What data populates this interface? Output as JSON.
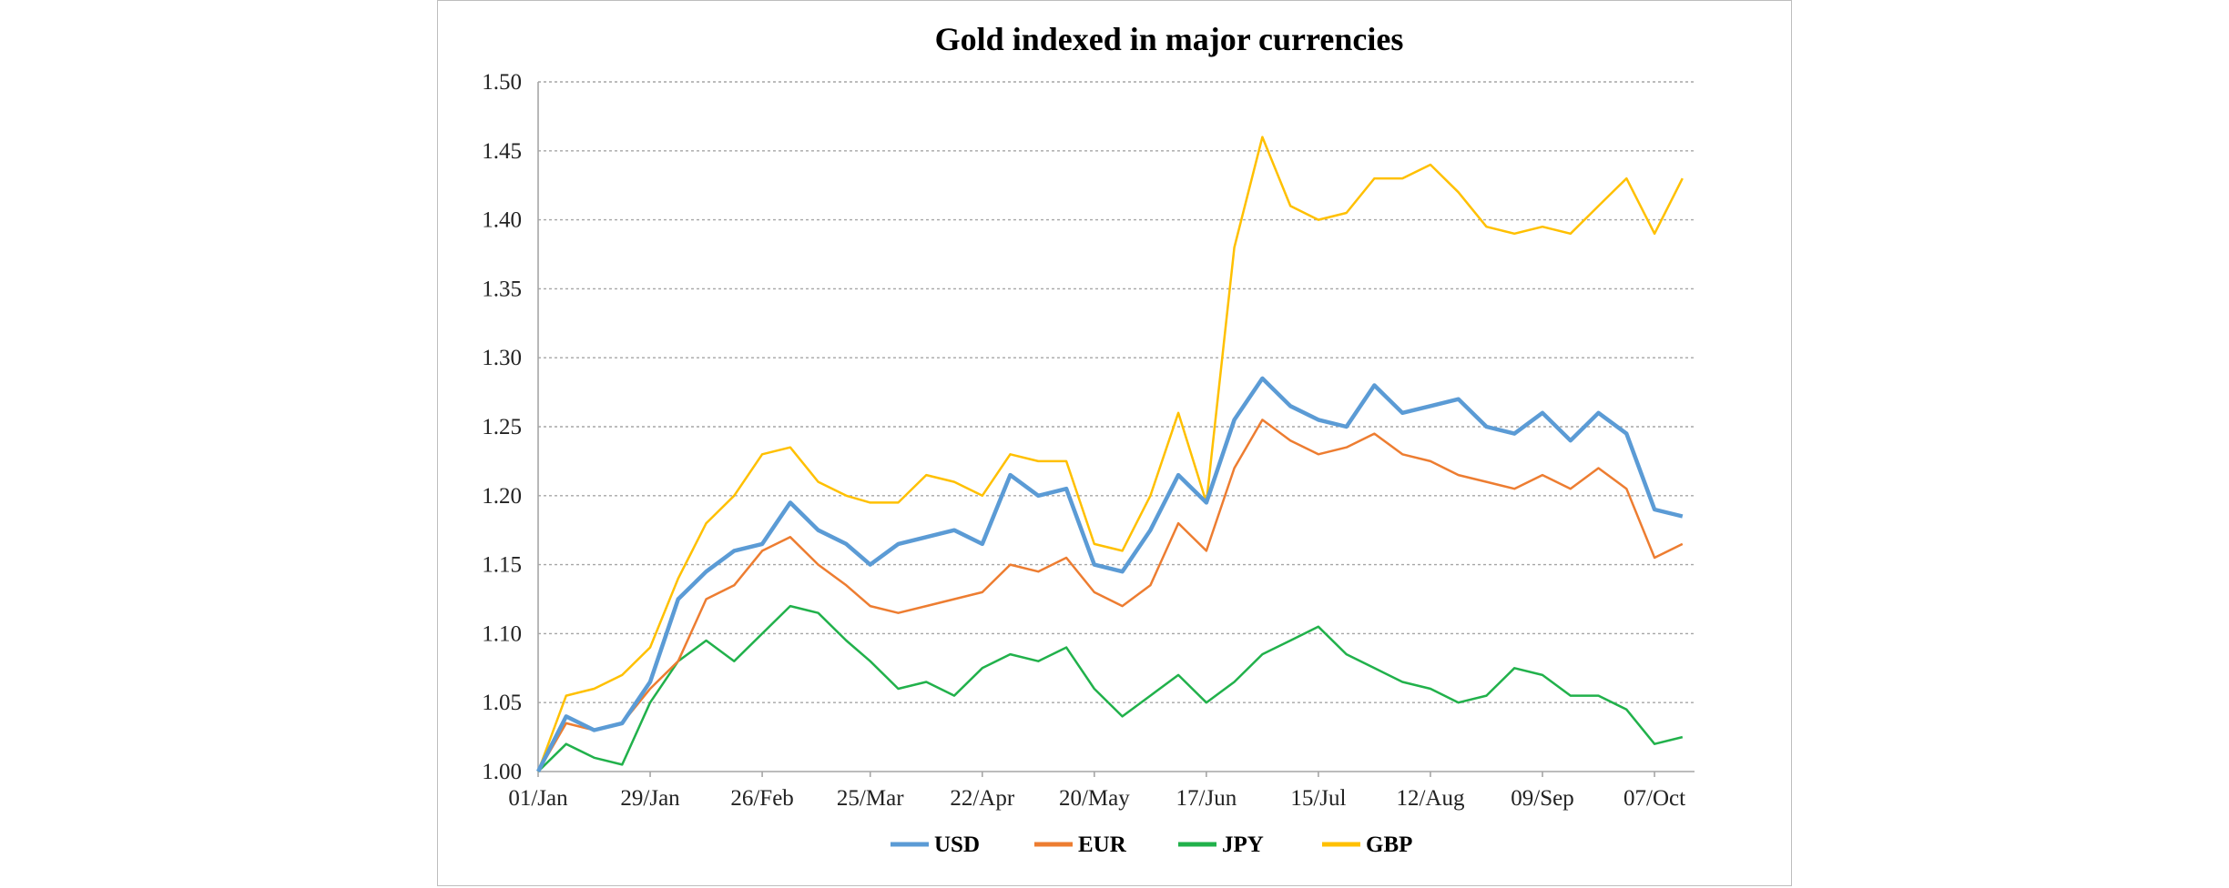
{
  "chart_data": {
    "type": "line",
    "title": "Gold indexed in major currencies",
    "xlabel": "",
    "ylabel": "",
    "ylim": [
      1.0,
      1.5
    ],
    "yticks": [
      "1.00",
      "1.05",
      "1.10",
      "1.15",
      "1.20",
      "1.25",
      "1.30",
      "1.35",
      "1.40",
      "1.45",
      "1.50"
    ],
    "xticks": [
      "01/Jan",
      "29/Jan",
      "26/Feb",
      "25/Mar",
      "22/Apr",
      "20/May",
      "17/Jun",
      "15/Jul",
      "12/Aug",
      "09/Sep",
      "07/Oct"
    ],
    "grid": true,
    "legend": "bottom",
    "colors": {
      "USD": "#5b9bd5",
      "EUR": "#ed7d31",
      "JPY": "#21b14b",
      "GBP": "#ffc000"
    },
    "series": [
      {
        "name": "USD",
        "points": [
          [
            "01/Jan",
            1.0
          ],
          [
            "08/Jan",
            1.04
          ],
          [
            "15/Jan",
            1.03
          ],
          [
            "22/Jan",
            1.035
          ],
          [
            "29/Jan",
            1.065
          ],
          [
            "05/Feb",
            1.125
          ],
          [
            "12/Feb",
            1.145
          ],
          [
            "19/Feb",
            1.16
          ],
          [
            "26/Feb",
            1.165
          ],
          [
            "05/Mar",
            1.195
          ],
          [
            "12/Mar",
            1.175
          ],
          [
            "19/Mar",
            1.165
          ],
          [
            "25/Mar",
            1.15
          ],
          [
            "01/Apr",
            1.165
          ],
          [
            "08/Apr",
            1.17
          ],
          [
            "15/Apr",
            1.175
          ],
          [
            "22/Apr",
            1.165
          ],
          [
            "29/Apr",
            1.215
          ],
          [
            "06/May",
            1.2
          ],
          [
            "13/May",
            1.205
          ],
          [
            "20/May",
            1.15
          ],
          [
            "27/May",
            1.145
          ],
          [
            "03/Jun",
            1.175
          ],
          [
            "10/Jun",
            1.215
          ],
          [
            "17/Jun",
            1.195
          ],
          [
            "24/Jun",
            1.255
          ],
          [
            "01/Jul",
            1.285
          ],
          [
            "08/Jul",
            1.265
          ],
          [
            "15/Jul",
            1.255
          ],
          [
            "22/Jul",
            1.25
          ],
          [
            "29/Jul",
            1.28
          ],
          [
            "05/Aug",
            1.26
          ],
          [
            "12/Aug",
            1.265
          ],
          [
            "19/Aug",
            1.27
          ],
          [
            "26/Aug",
            1.25
          ],
          [
            "02/Sep",
            1.245
          ],
          [
            "09/Sep",
            1.26
          ],
          [
            "16/Sep",
            1.24
          ],
          [
            "23/Sep",
            1.26
          ],
          [
            "30/Sep",
            1.245
          ],
          [
            "07/Oct",
            1.19
          ],
          [
            "14/Oct",
            1.185
          ]
        ]
      },
      {
        "name": "EUR",
        "points": [
          [
            "01/Jan",
            1.0
          ],
          [
            "08/Jan",
            1.035
          ],
          [
            "15/Jan",
            1.03
          ],
          [
            "22/Jan",
            1.035
          ],
          [
            "29/Jan",
            1.06
          ],
          [
            "05/Feb",
            1.08
          ],
          [
            "12/Feb",
            1.125
          ],
          [
            "19/Feb",
            1.135
          ],
          [
            "26/Feb",
            1.16
          ],
          [
            "05/Mar",
            1.17
          ],
          [
            "12/Mar",
            1.15
          ],
          [
            "19/Mar",
            1.135
          ],
          [
            "25/Mar",
            1.12
          ],
          [
            "01/Apr",
            1.115
          ],
          [
            "08/Apr",
            1.12
          ],
          [
            "15/Apr",
            1.125
          ],
          [
            "22/Apr",
            1.13
          ],
          [
            "29/Apr",
            1.15
          ],
          [
            "06/May",
            1.145
          ],
          [
            "13/May",
            1.155
          ],
          [
            "20/May",
            1.13
          ],
          [
            "27/May",
            1.12
          ],
          [
            "03/Jun",
            1.135
          ],
          [
            "10/Jun",
            1.18
          ],
          [
            "17/Jun",
            1.16
          ],
          [
            "24/Jun",
            1.22
          ],
          [
            "01/Jul",
            1.255
          ],
          [
            "08/Jul",
            1.24
          ],
          [
            "15/Jul",
            1.23
          ],
          [
            "22/Jul",
            1.235
          ],
          [
            "29/Jul",
            1.245
          ],
          [
            "05/Aug",
            1.23
          ],
          [
            "12/Aug",
            1.225
          ],
          [
            "19/Aug",
            1.215
          ],
          [
            "26/Aug",
            1.21
          ],
          [
            "02/Sep",
            1.205
          ],
          [
            "09/Sep",
            1.215
          ],
          [
            "16/Sep",
            1.205
          ],
          [
            "23/Sep",
            1.22
          ],
          [
            "30/Sep",
            1.205
          ],
          [
            "07/Oct",
            1.155
          ],
          [
            "14/Oct",
            1.165
          ]
        ]
      },
      {
        "name": "JPY",
        "points": [
          [
            "01/Jan",
            1.0
          ],
          [
            "08/Jan",
            1.02
          ],
          [
            "15/Jan",
            1.01
          ],
          [
            "22/Jan",
            1.005
          ],
          [
            "29/Jan",
            1.05
          ],
          [
            "05/Feb",
            1.08
          ],
          [
            "12/Feb",
            1.095
          ],
          [
            "19/Feb",
            1.08
          ],
          [
            "26/Feb",
            1.1
          ],
          [
            "05/Mar",
            1.12
          ],
          [
            "12/Mar",
            1.115
          ],
          [
            "19/Mar",
            1.095
          ],
          [
            "25/Mar",
            1.08
          ],
          [
            "01/Apr",
            1.06
          ],
          [
            "08/Apr",
            1.065
          ],
          [
            "15/Apr",
            1.055
          ],
          [
            "22/Apr",
            1.075
          ],
          [
            "29/Apr",
            1.085
          ],
          [
            "06/May",
            1.08
          ],
          [
            "13/May",
            1.09
          ],
          [
            "20/May",
            1.06
          ],
          [
            "27/May",
            1.04
          ],
          [
            "03/Jun",
            1.055
          ],
          [
            "10/Jun",
            1.07
          ],
          [
            "17/Jun",
            1.05
          ],
          [
            "24/Jun",
            1.065
          ],
          [
            "01/Jul",
            1.085
          ],
          [
            "08/Jul",
            1.095
          ],
          [
            "15/Jul",
            1.105
          ],
          [
            "22/Jul",
            1.085
          ],
          [
            "29/Jul",
            1.075
          ],
          [
            "05/Aug",
            1.065
          ],
          [
            "12/Aug",
            1.06
          ],
          [
            "19/Aug",
            1.05
          ],
          [
            "26/Aug",
            1.055
          ],
          [
            "02/Sep",
            1.075
          ],
          [
            "09/Sep",
            1.07
          ],
          [
            "16/Sep",
            1.055
          ],
          [
            "23/Sep",
            1.055
          ],
          [
            "30/Sep",
            1.045
          ],
          [
            "07/Oct",
            1.02
          ],
          [
            "14/Oct",
            1.025
          ]
        ]
      },
      {
        "name": "GBP",
        "points": [
          [
            "01/Jan",
            1.0
          ],
          [
            "08/Jan",
            1.055
          ],
          [
            "15/Jan",
            1.06
          ],
          [
            "22/Jan",
            1.07
          ],
          [
            "29/Jan",
            1.09
          ],
          [
            "05/Feb",
            1.14
          ],
          [
            "12/Feb",
            1.18
          ],
          [
            "19/Feb",
            1.2
          ],
          [
            "26/Feb",
            1.23
          ],
          [
            "05/Mar",
            1.235
          ],
          [
            "12/Mar",
            1.21
          ],
          [
            "19/Mar",
            1.2
          ],
          [
            "25/Mar",
            1.195
          ],
          [
            "01/Apr",
            1.195
          ],
          [
            "08/Apr",
            1.215
          ],
          [
            "15/Apr",
            1.21
          ],
          [
            "22/Apr",
            1.2
          ],
          [
            "29/Apr",
            1.23
          ],
          [
            "06/May",
            1.225
          ],
          [
            "13/May",
            1.225
          ],
          [
            "20/May",
            1.165
          ],
          [
            "27/May",
            1.16
          ],
          [
            "03/Jun",
            1.2
          ],
          [
            "10/Jun",
            1.26
          ],
          [
            "17/Jun",
            1.195
          ],
          [
            "24/Jun",
            1.38
          ],
          [
            "01/Jul",
            1.46
          ],
          [
            "08/Jul",
            1.41
          ],
          [
            "15/Jul",
            1.4
          ],
          [
            "22/Jul",
            1.405
          ],
          [
            "29/Jul",
            1.43
          ],
          [
            "05/Aug",
            1.43
          ],
          [
            "12/Aug",
            1.44
          ],
          [
            "19/Aug",
            1.42
          ],
          [
            "26/Aug",
            1.395
          ],
          [
            "02/Sep",
            1.39
          ],
          [
            "09/Sep",
            1.395
          ],
          [
            "16/Sep",
            1.39
          ],
          [
            "23/Sep",
            1.41
          ],
          [
            "30/Sep",
            1.43
          ],
          [
            "07/Oct",
            1.39
          ],
          [
            "14/Oct",
            1.43
          ]
        ]
      }
    ]
  }
}
